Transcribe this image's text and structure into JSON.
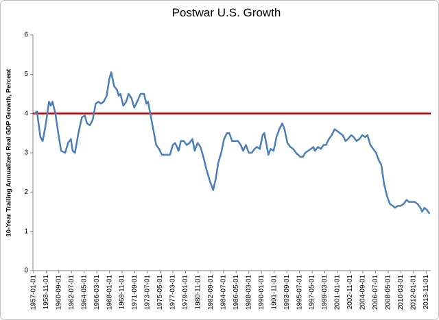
{
  "chart_data": {
    "type": "line",
    "title": "Postwar U.S. Growth",
    "y_label": "10-Year Trailing Annualized  Real GDP Growth, Percent",
    "x": [
      "1957-03-01",
      "1957-07-01",
      "1958-01-01",
      "1958-05-01",
      "1958-10-01",
      "1959-04-01",
      "1959-07-01",
      "1959-10-01",
      "1960-03-01",
      "1960-08-01",
      "1961-01-01",
      "1961-08-01",
      "1962-01-01",
      "1962-06-01",
      "1962-09-01",
      "1963-01-01",
      "1963-07-01",
      "1964-01-01",
      "1964-06-01",
      "1964-10-01",
      "1965-03-01",
      "1965-08-01",
      "1966-01-01",
      "1966-06-01",
      "1966-10-01",
      "1967-03-01",
      "1967-08-01",
      "1968-01-01",
      "1968-04-01",
      "1968-09-01",
      "1969-02-01",
      "1969-05-01",
      "1969-08-01",
      "1970-01-01",
      "1970-06-01",
      "1970-10-01",
      "1971-03-01",
      "1971-08-01",
      "1972-01-01",
      "1972-07-01",
      "1973-01-01",
      "1973-05-01",
      "1973-08-01",
      "1974-01-01",
      "1974-05-01",
      "1974-10-01",
      "1975-03-01",
      "1975-08-01",
      "1976-03-01",
      "1976-10-01",
      "1977-03-01",
      "1977-07-01",
      "1978-01-01",
      "1978-05-01",
      "1978-10-01",
      "1979-03-01",
      "1979-08-01",
      "1980-01-01",
      "1980-05-01",
      "1980-10-01",
      "1981-03-01",
      "1981-08-01",
      "1982-01-01",
      "1982-07-01",
      "1983-01-01",
      "1983-05-01",
      "1983-10-01",
      "1984-03-01",
      "1984-08-01",
      "1985-01-01",
      "1985-05-01",
      "1985-10-01",
      "1986-03-01",
      "1986-08-01",
      "1987-01-01",
      "1987-05-01",
      "1987-10-01",
      "1988-03-01",
      "1988-08-01",
      "1989-01-01",
      "1989-05-01",
      "1989-10-01",
      "1990-03-01",
      "1990-06-01",
      "1991-01-01",
      "1991-05-01",
      "1991-10-01",
      "1992-03-01",
      "1992-08-01",
      "1993-01-01",
      "1993-05-01",
      "1993-10-01",
      "1994-03-01",
      "1994-08-01",
      "1995-01-01",
      "1995-08-01",
      "1996-01-01",
      "1996-05-01",
      "1996-10-01",
      "1997-03-01",
      "1997-07-01",
      "1997-10-01",
      "1998-03-01",
      "1998-08-01",
      "1999-01-01",
      "1999-05-01",
      "1999-10-01",
      "2000-03-01",
      "2000-08-01",
      "2001-01-01",
      "2001-05-01",
      "2001-10-01",
      "2002-03-01",
      "2002-07-01",
      "2003-01-01",
      "2003-05-01",
      "2003-10-01",
      "2004-03-01",
      "2004-08-01",
      "2005-01-01",
      "2005-05-01",
      "2005-10-01",
      "2006-03-01",
      "2006-08-01",
      "2007-01-01",
      "2007-05-01",
      "2007-10-01",
      "2008-03-01",
      "2008-08-01",
      "2009-01-01",
      "2009-05-01",
      "2009-10-01",
      "2010-03-01",
      "2010-08-01",
      "2011-01-01",
      "2011-05-01",
      "2011-10-01",
      "2012-03-01",
      "2012-08-01",
      "2013-01-01",
      "2013-04-01",
      "2013-08-01",
      "2013-12-01",
      "2014-05-01"
    ],
    "series": [
      {
        "color": "#4a7ebb",
        "values": [
          4.0,
          4.05,
          3.4,
          3.3,
          3.7,
          4.3,
          4.2,
          4.3,
          4.0,
          3.5,
          3.05,
          3.0,
          3.25,
          3.35,
          3.05,
          3.0,
          3.5,
          3.9,
          3.95,
          3.75,
          3.7,
          3.85,
          4.25,
          4.3,
          4.25,
          4.3,
          4.45,
          4.9,
          5.05,
          4.7,
          4.6,
          4.45,
          4.5,
          4.2,
          4.3,
          4.5,
          4.4,
          4.15,
          4.3,
          4.5,
          4.5,
          4.25,
          4.3,
          3.9,
          3.6,
          3.2,
          3.1,
          2.95,
          2.95,
          2.95,
          3.2,
          3.25,
          3.05,
          3.3,
          3.3,
          3.2,
          3.25,
          3.35,
          3.05,
          3.25,
          3.15,
          2.9,
          2.6,
          2.3,
          2.05,
          2.3,
          2.75,
          3.0,
          3.35,
          3.5,
          3.5,
          3.3,
          3.3,
          3.3,
          3.2,
          3.05,
          3.2,
          3.0,
          3.0,
          3.1,
          3.15,
          3.1,
          3.45,
          3.5,
          2.95,
          3.1,
          3.05,
          3.4,
          3.6,
          3.75,
          3.6,
          3.25,
          3.15,
          3.1,
          3.0,
          2.9,
          2.9,
          3.0,
          3.05,
          3.1,
          3.15,
          3.05,
          3.15,
          3.1,
          3.2,
          3.2,
          3.35,
          3.45,
          3.6,
          3.55,
          3.5,
          3.45,
          3.3,
          3.35,
          3.45,
          3.4,
          3.3,
          3.35,
          3.45,
          3.4,
          3.45,
          3.2,
          3.1,
          3.0,
          2.8,
          2.7,
          2.2,
          1.9,
          1.7,
          1.65,
          1.6,
          1.65,
          1.65,
          1.7,
          1.8,
          1.75,
          1.75,
          1.75,
          1.7,
          1.6,
          1.5,
          1.6,
          1.55,
          1.45
        ]
      }
    ],
    "reference_line": {
      "value": 4,
      "color": "#c00000"
    },
    "xlim": [
      "1956-12-01",
      "2014-07-01"
    ],
    "xticks": [
      "1957-01-01",
      "1958-11-01",
      "1960-09-01",
      "1962-07-01",
      "1964-05-01",
      "1966-03-01",
      "1968-01-01",
      "1969-11-01",
      "1971-09-01",
      "1973-07-01",
      "1975-05-01",
      "1977-03-01",
      "1979-01-01",
      "1980-11-01",
      "1982-09-01",
      "1984-07-01",
      "1986-05-01",
      "1988-03-01",
      "1990-01-01",
      "1991-11-01",
      "1993-09-01",
      "1995-07-01",
      "1997-05-01",
      "1999-03-01",
      "2001-01-01",
      "2002-11-01",
      "2004-09-01",
      "2006-07-01",
      "2008-05-01",
      "2010-03-01",
      "2012-01-01",
      "2013-11-01"
    ],
    "ylim": [
      0,
      6
    ],
    "yticks": [
      0,
      1,
      2,
      3,
      4,
      5,
      6
    ],
    "grid": false
  }
}
